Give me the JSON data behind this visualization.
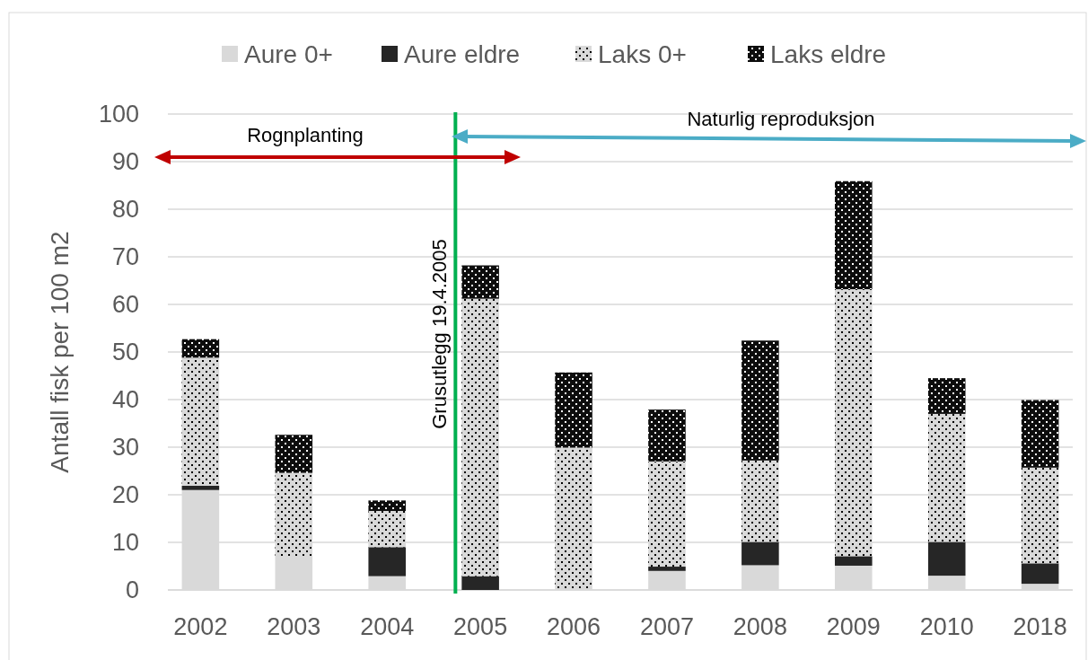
{
  "chart_data": {
    "type": "bar",
    "stacked": true,
    "ylabel": "Antall fisk per 100 m2",
    "categories": [
      "2002",
      "2003",
      "2004",
      "2005",
      "2006",
      "2007",
      "2008",
      "2009",
      "2010",
      "2018"
    ],
    "series": [
      {
        "name": "Aure 0+",
        "color": "#d9d9d9",
        "values": [
          21.0,
          6.8,
          2.9,
          0,
          0,
          4.0,
          5.2,
          5.1,
          3.0,
          1.3
        ]
      },
      {
        "name": "Aure eldre",
        "color": "#262626",
        "values": [
          0.9,
          0,
          6.1,
          2.9,
          0,
          0.9,
          4.9,
          2.0,
          7.1,
          4.3
        ]
      },
      {
        "name": "Laks 0+",
        "color": "#d9d9d9",
        "values": [
          26.9,
          17.8,
          7.6,
          58.3,
          29.9,
          22.1,
          17.1,
          56.1,
          26.9,
          20.1
        ]
      },
      {
        "name": "Laks eldre",
        "color": "#0d0d0d",
        "values": [
          3.9,
          8.0,
          2.2,
          7.0,
          15.8,
          10.9,
          25.2,
          22.7,
          7.5,
          14.2
        ]
      }
    ],
    "ylim": [
      0,
      100
    ],
    "yticks": [
      0,
      10,
      20,
      30,
      40,
      50,
      60,
      70,
      80,
      90,
      100
    ],
    "grid": "y",
    "legend": "top",
    "ref_lines": [
      {
        "axis": "x",
        "value": "2005",
        "label": "Grusutlegg 19.4.2005",
        "color": "#00b050"
      }
    ],
    "annotations": [
      "Rognplanting",
      "Naturlig reproduksjon"
    ]
  }
}
